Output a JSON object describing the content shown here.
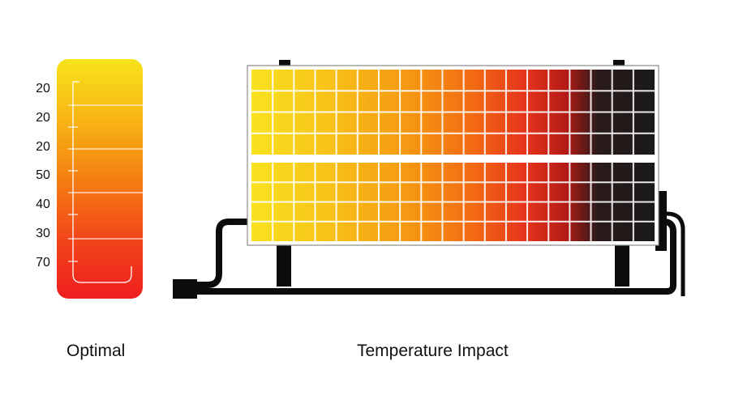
{
  "thermometer": {
    "scale_labels": [
      "20",
      "20",
      "20",
      "50",
      "40",
      "30",
      "70"
    ],
    "caption": "Optimal",
    "gradient": [
      "#f7e31c",
      "#f8b614",
      "#f47f12",
      "#f2461a",
      "#ef1e1f"
    ]
  },
  "panel": {
    "caption": "Temperature Impact",
    "gradient": [
      "#f9e21f",
      "#f8c418",
      "#f59a12",
      "#f26a12",
      "#e5331c",
      "#b41b16",
      "#2a1a1a",
      "#1a1a1a"
    ],
    "frame_color": "#8a8a8a",
    "mount_color": "#0c0c0c"
  }
}
